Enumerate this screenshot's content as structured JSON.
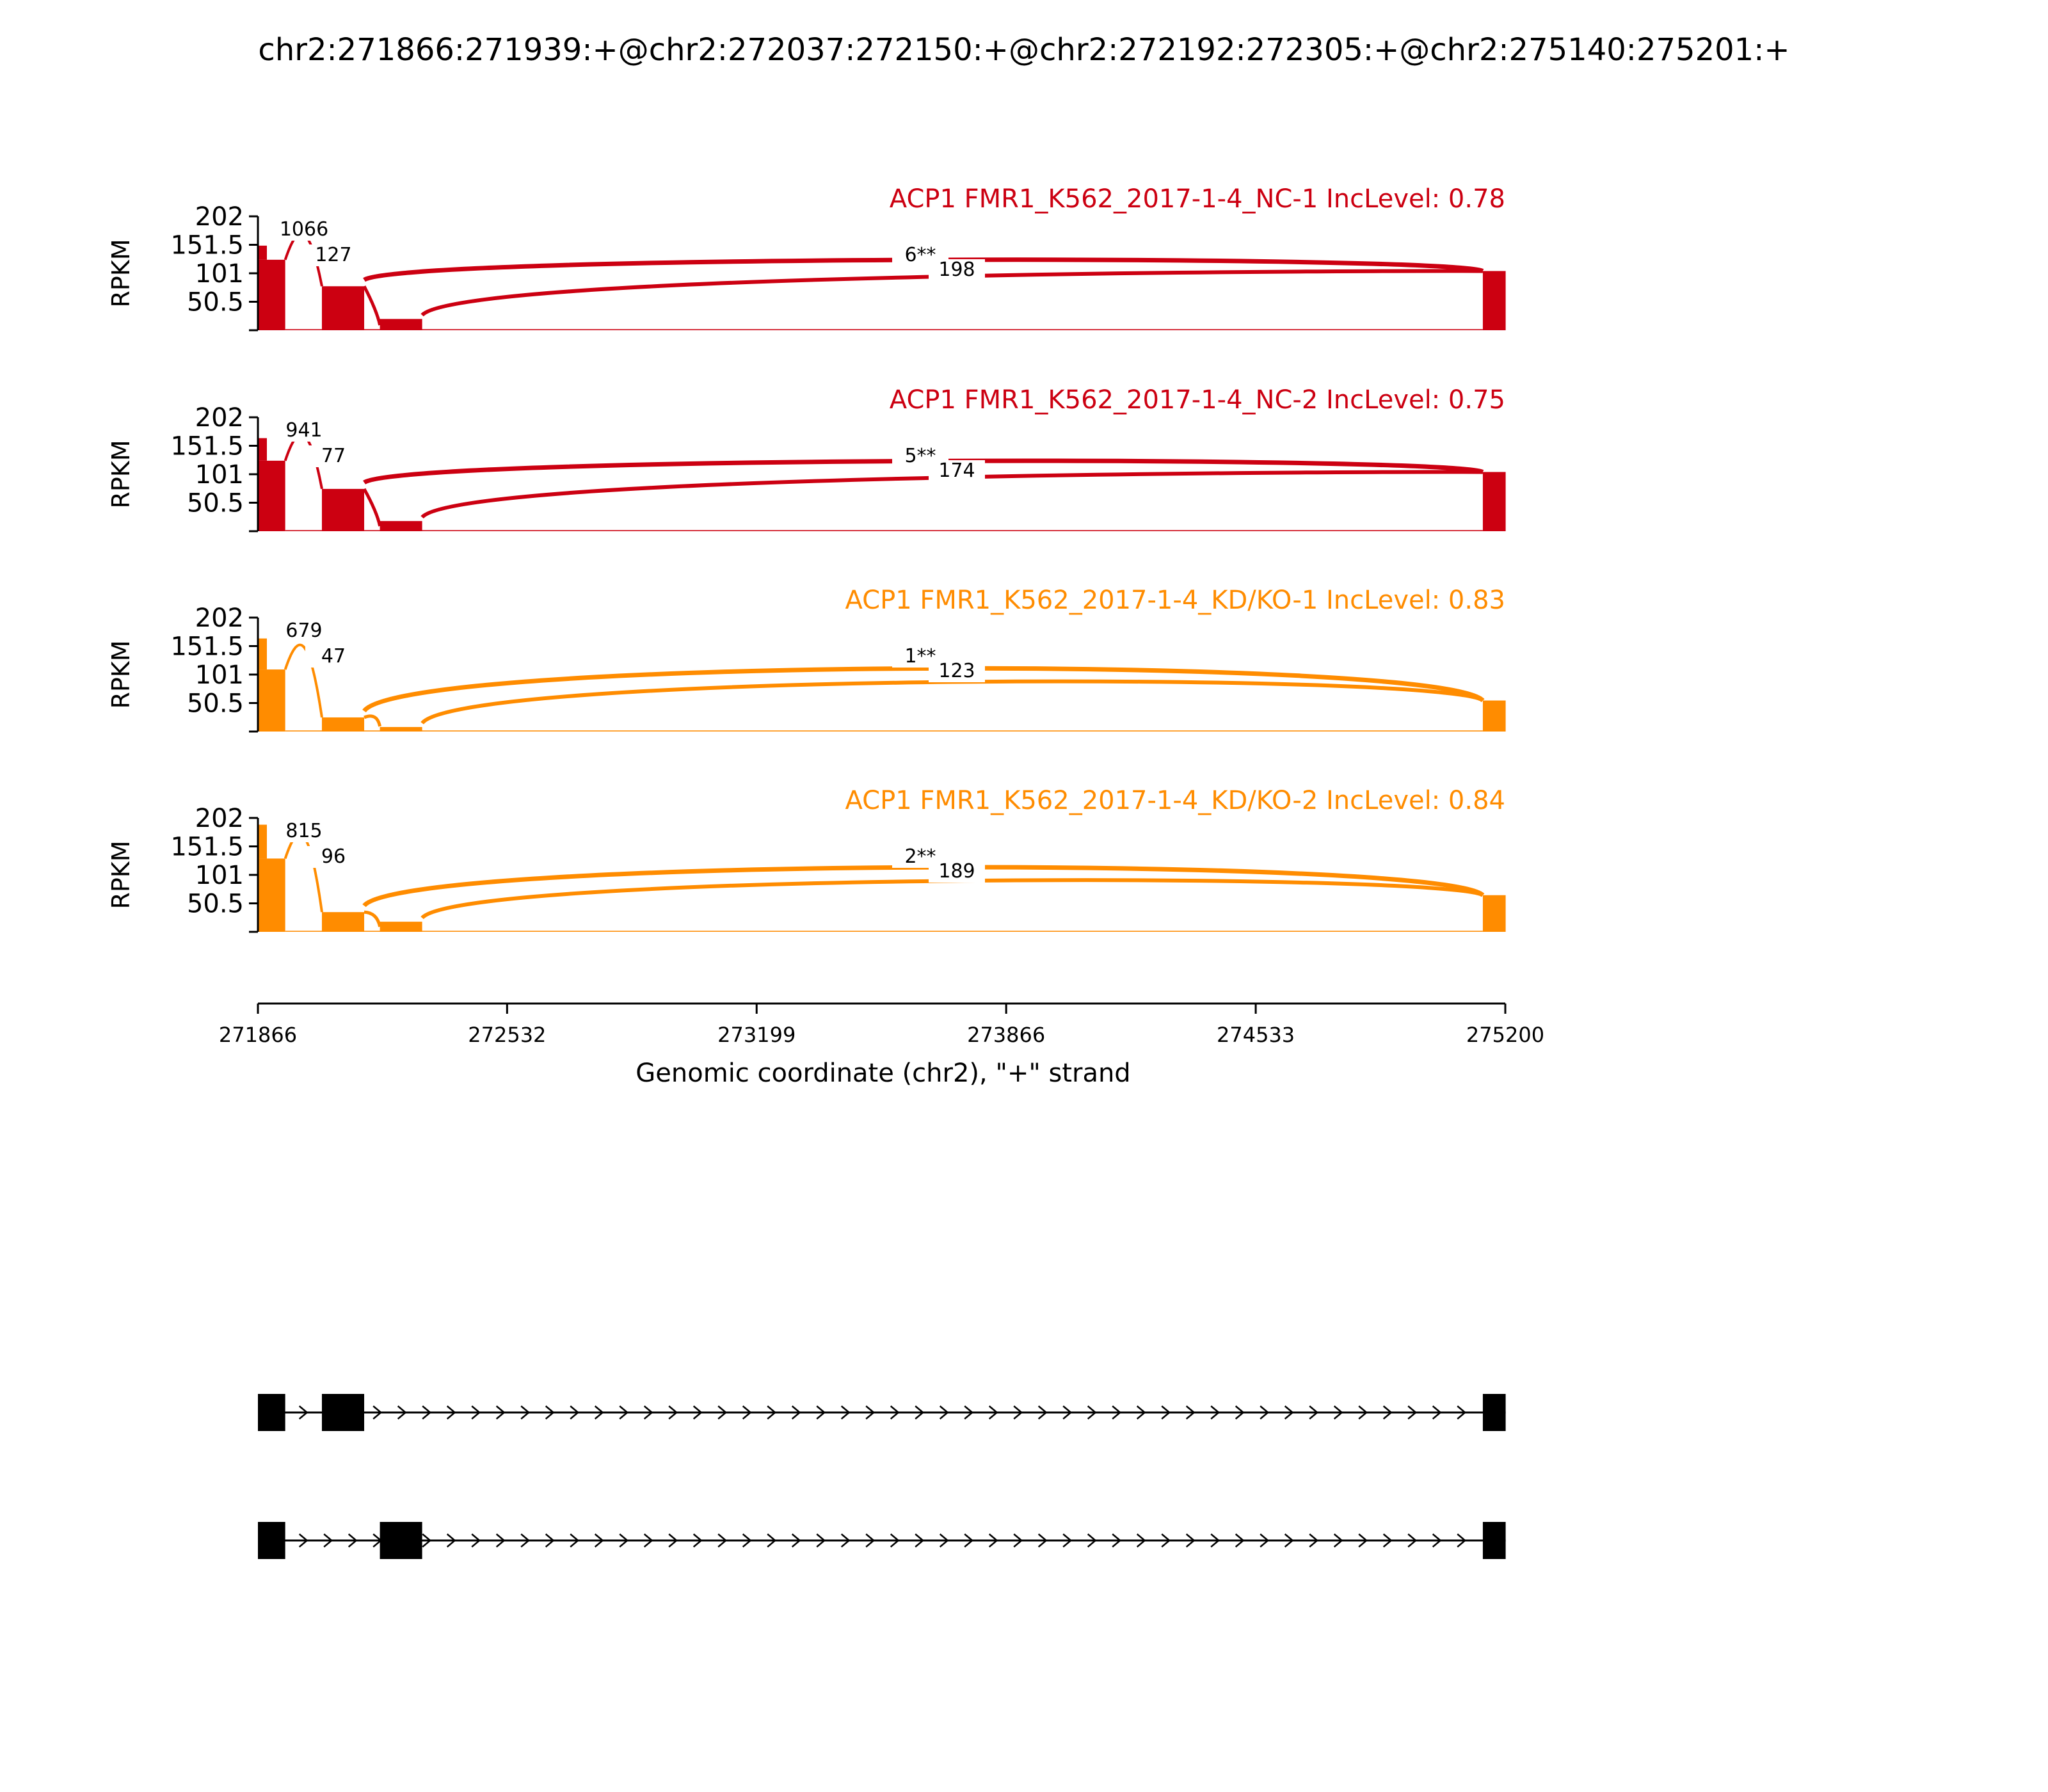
{
  "figure_title": "chr2:271866:271939:+@chr2:272037:272150:+@chr2:272192:272305:+@chr2:275140:275201:+",
  "chart_data": {
    "type": "area",
    "title": "chr2:271866:271939:+@chr2:272037:272150:+@chr2:272192:272305:+@chr2:275140:275201:+",
    "xlabel": "Genomic coordinate (chr2), \"+\" strand",
    "ylabel": "RPKM",
    "xlim": [
      271866,
      275200
    ],
    "ylim": [
      0,
      202
    ],
    "xticks": [
      271866,
      272532,
      273199,
      273866,
      274533,
      275200
    ],
    "yticks": [
      50.5,
      101,
      151.5,
      202
    ],
    "exons": [
      [
        271866,
        271939
      ],
      [
        272037,
        272150
      ],
      [
        272192,
        272305
      ],
      [
        275140,
        275201
      ]
    ],
    "tracks": [
      {
        "label": "ACP1 FMR1_K562_2017-1-4_NC-1 IncLevel: 0.78",
        "color": "#cc0011",
        "coverage": {
          "exon1": 125,
          "exon1_peak": 150,
          "exon2": 78,
          "exon3": 20,
          "exon4": 105,
          "intron": 2
        },
        "junctions": [
          {
            "from": 271939,
            "to": 272037,
            "count": "1066"
          },
          {
            "from": 272150,
            "to": 272192,
            "count": "127"
          },
          {
            "from": 272150,
            "to": 275140,
            "count": "6**"
          },
          {
            "from": 272305,
            "to": 275140,
            "count": "198"
          }
        ]
      },
      {
        "label": "ACP1 FMR1_K562_2017-1-4_NC-2 IncLevel: 0.75",
        "color": "#cc0011",
        "coverage": {
          "exon1": 125,
          "exon1_peak": 165,
          "exon2": 75,
          "exon3": 18,
          "exon4": 105,
          "intron": 2
        },
        "junctions": [
          {
            "from": 271939,
            "to": 272037,
            "count": "941"
          },
          {
            "from": 272150,
            "to": 272192,
            "count": "77"
          },
          {
            "from": 272150,
            "to": 275140,
            "count": "5**"
          },
          {
            "from": 272305,
            "to": 275140,
            "count": "174"
          }
        ]
      },
      {
        "label": "ACP1 FMR1_K562_2017-1-4_KD/KO-1 IncLevel: 0.83",
        "color": "#ff8c00",
        "coverage": {
          "exon1": 110,
          "exon1_peak": 165,
          "exon2": 25,
          "exon3": 8,
          "exon4": 55,
          "intron": 2
        },
        "junctions": [
          {
            "from": 271939,
            "to": 272037,
            "count": "679"
          },
          {
            "from": 272150,
            "to": 272192,
            "count": "47"
          },
          {
            "from": 272150,
            "to": 275140,
            "count": "1**"
          },
          {
            "from": 272305,
            "to": 275140,
            "count": "123"
          }
        ]
      },
      {
        "label": "ACP1 FMR1_K562_2017-1-4_KD/KO-2 IncLevel: 0.84",
        "color": "#ff8c00",
        "coverage": {
          "exon1": 130,
          "exon1_peak": 190,
          "exon2": 35,
          "exon3": 18,
          "exon4": 65,
          "intron": 2
        },
        "junctions": [
          {
            "from": 271939,
            "to": 272037,
            "count": "815"
          },
          {
            "from": 272150,
            "to": 272192,
            "count": "96"
          },
          {
            "from": 272150,
            "to": 275140,
            "count": "2**"
          },
          {
            "from": 272305,
            "to": 275140,
            "count": "189"
          }
        ]
      }
    ],
    "transcripts": [
      {
        "exons": [
          [
            271866,
            271939
          ],
          [
            272037,
            272150
          ],
          [
            275140,
            275201
          ]
        ]
      },
      {
        "exons": [
          [
            271866,
            271939
          ],
          [
            272192,
            272305
          ],
          [
            275140,
            275201
          ]
        ]
      }
    ]
  }
}
